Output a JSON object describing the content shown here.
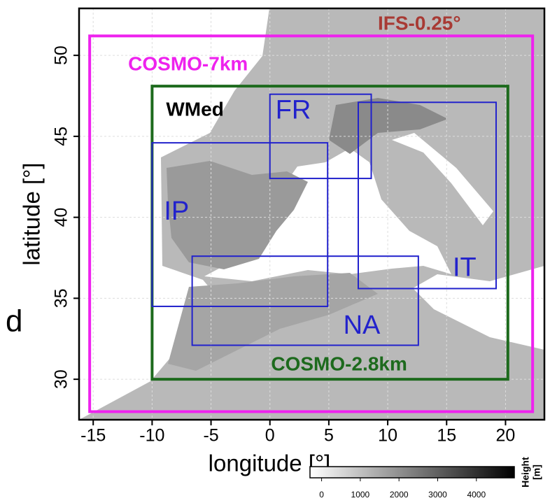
{
  "panel_label": "d",
  "map": {
    "xlabel": "longitude [°]",
    "ylabel": "latitude [°]",
    "xlim": [
      -16.2,
      23.3
    ],
    "ylim": [
      27.5,
      52.9
    ],
    "xticks": [
      -15,
      -10,
      -5,
      0,
      5,
      10,
      15,
      20
    ],
    "yticks": [
      30,
      35,
      40,
      45,
      50
    ],
    "grid": true,
    "background_label": {
      "text": "IFS-0.25°",
      "color": "#a83a34"
    },
    "domains": [
      {
        "name": "COSMO-7km",
        "color": "#ee22ee",
        "lon": [
          -15.3,
          22.3
        ],
        "lat": [
          28,
          51.2
        ]
      },
      {
        "name": "COSMO-2.8km",
        "region": "WMed",
        "color": "#1d6a1d",
        "lon": [
          -10,
          20.2
        ],
        "lat": [
          30,
          48.1
        ]
      },
      {
        "name": "FR",
        "color": "#2222cc",
        "lon": [
          0,
          8.6
        ],
        "lat": [
          42.4,
          47.6
        ]
      },
      {
        "name": "IT",
        "color": "#2222cc",
        "lon": [
          7.5,
          19.2
        ],
        "lat": [
          35.6,
          47.1
        ]
      },
      {
        "name": "IP",
        "color": "#2222cc",
        "lon": [
          -10,
          4.9
        ],
        "lat": [
          34.5,
          44.6
        ]
      },
      {
        "name": "NA",
        "color": "#2222cc",
        "lon": [
          -6.6,
          12.6
        ],
        "lat": [
          32.1,
          37.6
        ]
      }
    ]
  },
  "colorbar": {
    "label": "Height",
    "unit": "[m]",
    "lim": [
      -300,
      4980
    ],
    "ticks": [
      0,
      1000,
      2000,
      3000,
      4000
    ],
    "colors": [
      "#ffffff",
      "#000000"
    ]
  }
}
